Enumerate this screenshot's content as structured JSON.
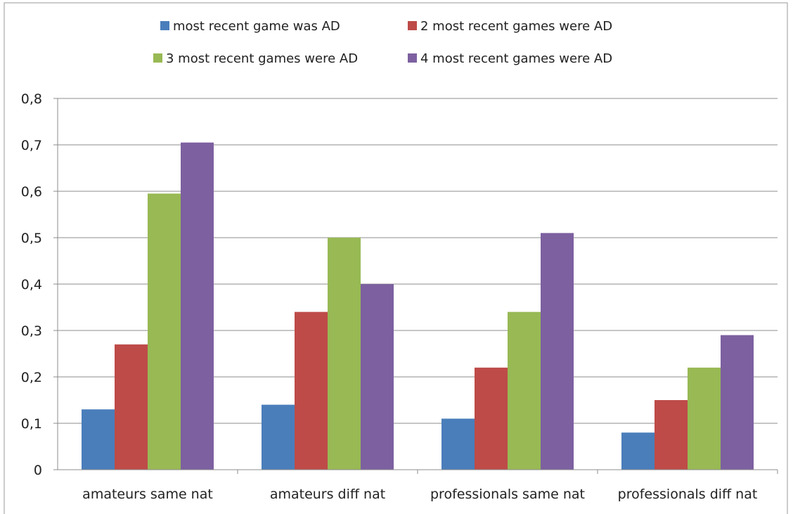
{
  "chart_data": {
    "type": "bar",
    "categories": [
      "amateurs same nat",
      "amateurs diff nat",
      "professionals same nat",
      "professionals diff nat"
    ],
    "series": [
      {
        "name": "most recent game was AD",
        "color": "#4a7ebb",
        "values": [
          0.13,
          0.14,
          0.11,
          0.08
        ]
      },
      {
        "name": "2 most recent games were AD",
        "color": "#be4b48",
        "values": [
          0.27,
          0.34,
          0.22,
          0.15
        ]
      },
      {
        "name": "3 most recent games were AD",
        "color": "#98b954",
        "values": [
          0.595,
          0.5,
          0.34,
          0.22
        ]
      },
      {
        "name": "4 most recent games were AD",
        "color": "#7d60a0",
        "values": [
          0.705,
          0.4,
          0.51,
          0.29
        ]
      }
    ],
    "yticks": [
      "0",
      "0,1",
      "0,2",
      "0,3",
      "0,4",
      "0,5",
      "0,6",
      "0,7",
      "0,8"
    ],
    "ylim": [
      0,
      0.8
    ],
    "grid": true,
    "legend_position": "top"
  }
}
